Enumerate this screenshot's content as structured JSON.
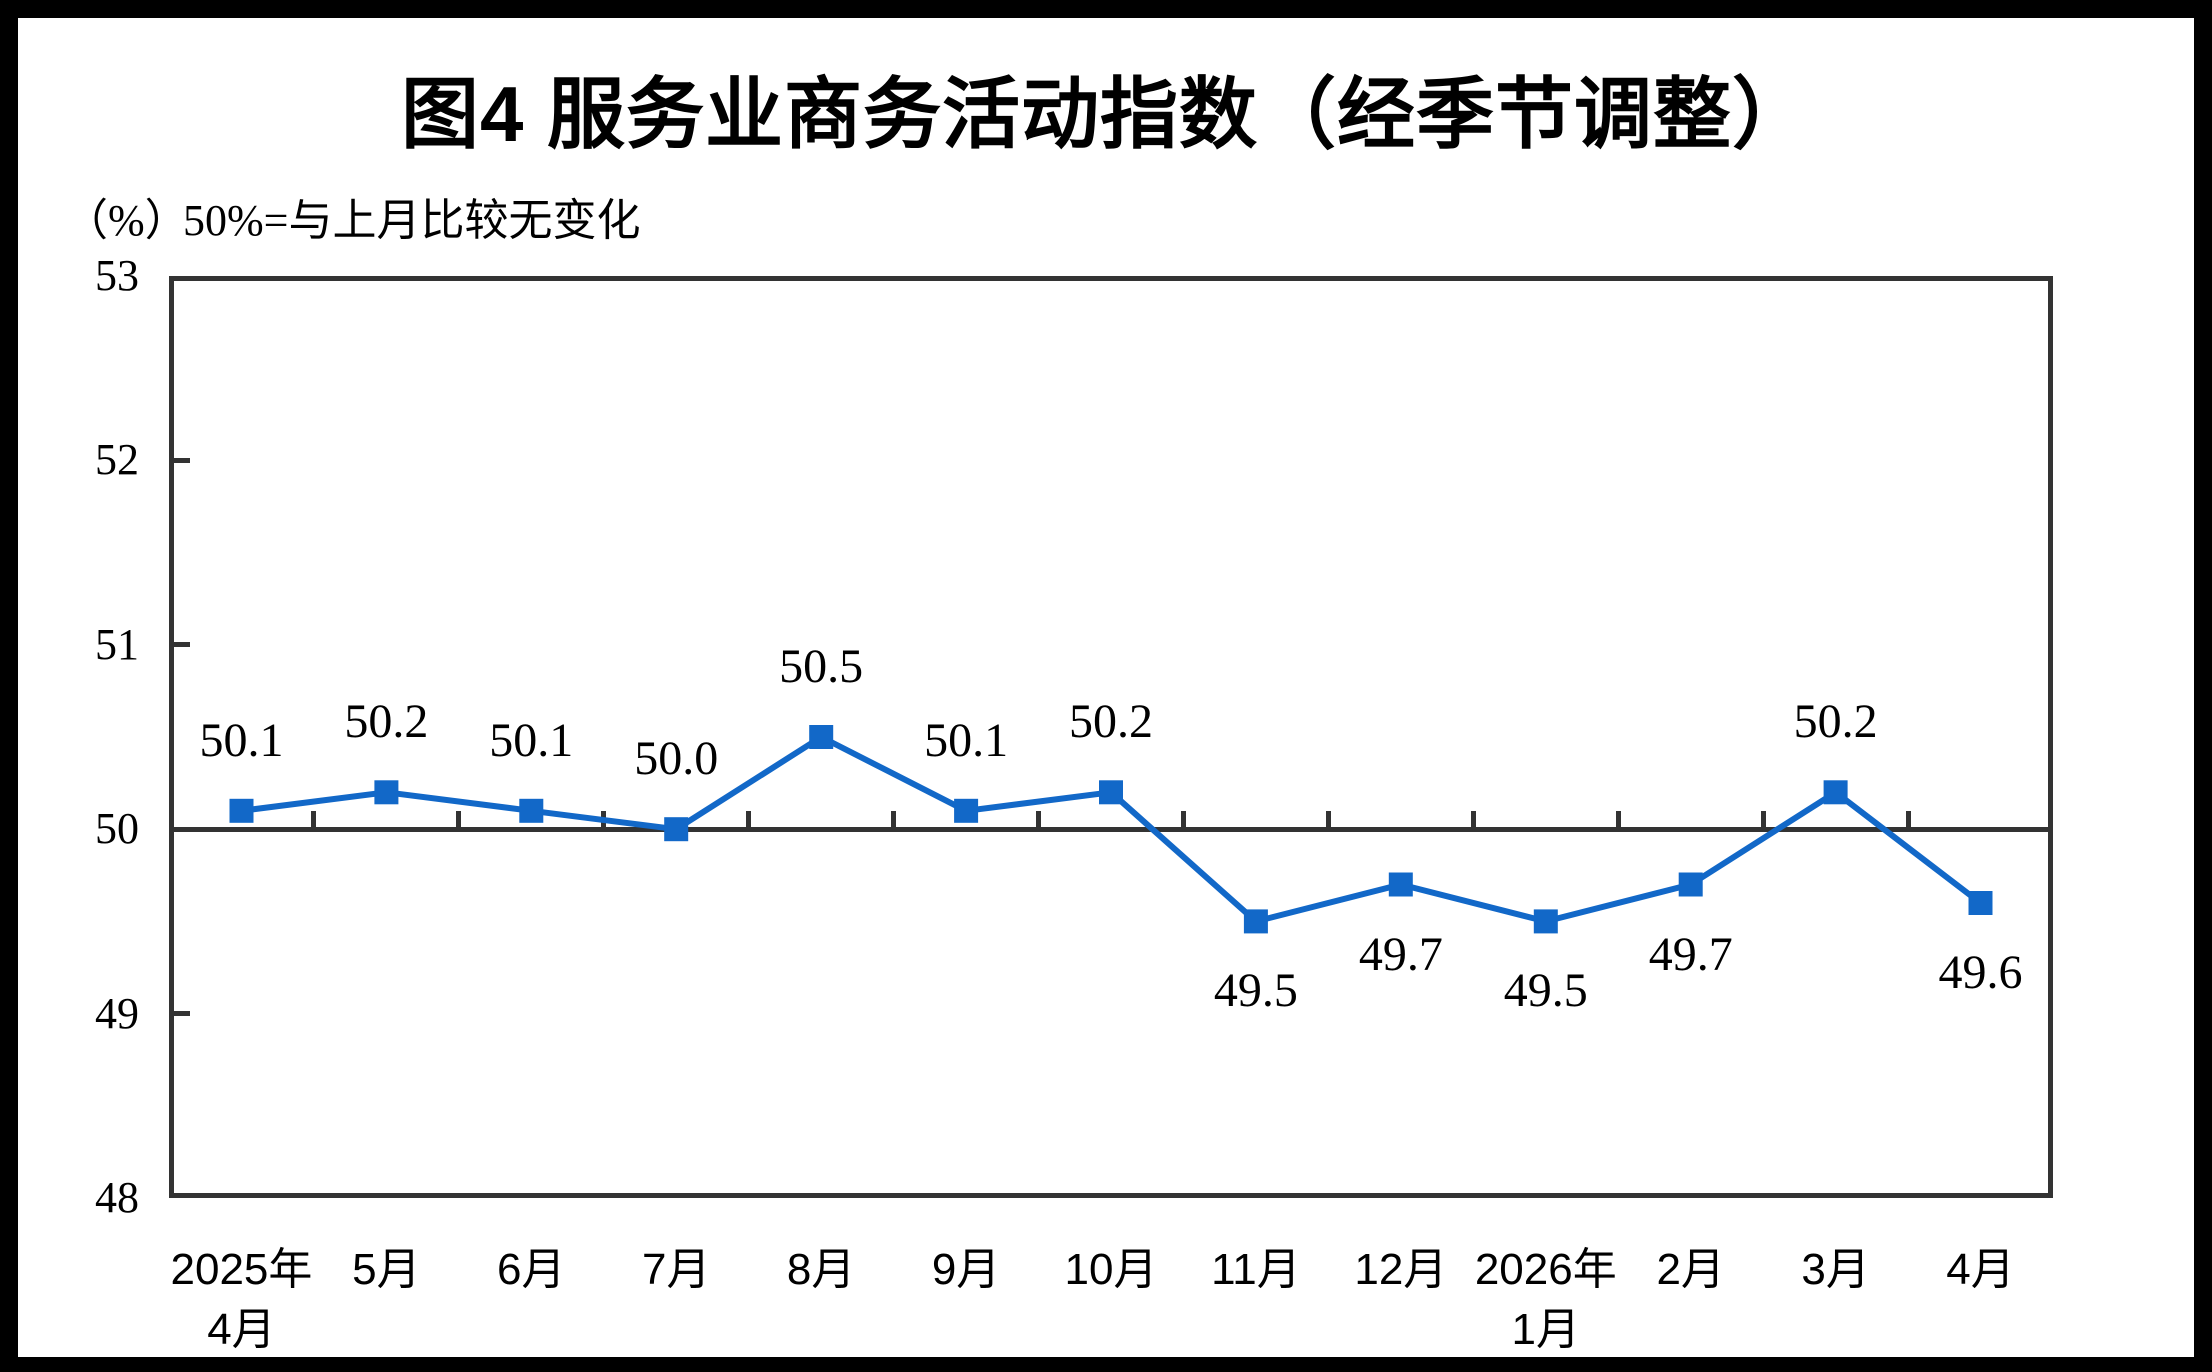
{
  "chart_data": {
    "type": "line",
    "title": "图4  服务业商务活动指数（经季节调整）",
    "unit_label": "（%）",
    "subtitle": "50%=与上月比较无变化",
    "categories": [
      [
        "2025年",
        "4月"
      ],
      [
        "5月"
      ],
      [
        "6月"
      ],
      [
        "7月"
      ],
      [
        "8月"
      ],
      [
        "9月"
      ],
      [
        "10月"
      ],
      [
        "11月"
      ],
      [
        "12月"
      ],
      [
        "2026年",
        "1月"
      ],
      [
        "2月"
      ],
      [
        "3月"
      ],
      [
        "4月"
      ]
    ],
    "values": [
      50.1,
      50.2,
      50.1,
      50.0,
      50.5,
      50.1,
      50.2,
      49.5,
      49.7,
      49.5,
      49.7,
      50.2,
      49.6
    ],
    "value_labels": [
      "50.1",
      "50.2",
      "50.1",
      "50.0",
      "50.5",
      "50.1",
      "50.2",
      "49.5",
      "49.7",
      "49.5",
      "49.7",
      "50.2",
      "49.6"
    ],
    "ylim": [
      48,
      53
    ],
    "yticks": [
      53,
      52,
      51,
      50,
      49,
      48
    ],
    "baseline": 50,
    "grid": "baseline-only",
    "legend": "none",
    "line_color": "#1268C8",
    "marker_color": "#1268C8",
    "axis_color": "#333333"
  }
}
